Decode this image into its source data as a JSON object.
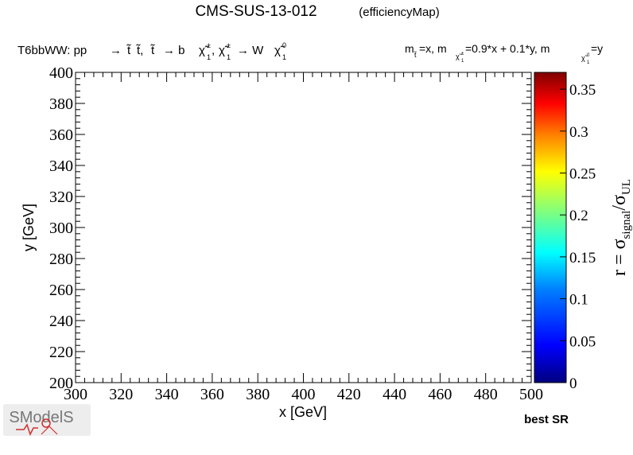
{
  "header": {
    "title": "CMS-SUS-13-012",
    "subtitle": "(efficiencyMap)"
  },
  "process": {
    "label": "T6bbWW: pp",
    "decay_parts": [
      "→",
      "t̃",
      "t̃,",
      "t̃",
      "→ b",
      "χ̃",
      "±",
      "1",
      ",",
      "χ̃",
      "±",
      "1",
      "→ W",
      "χ̃",
      "0",
      "1"
    ]
  },
  "mass_relation": {
    "m1": "m",
    "m1_sub": "t̃",
    "m1_rest": "=x, m",
    "m2_sub": "χ̃",
    "m2_sub_sup": "±",
    "m2_sub_sub": "1",
    "m2_rest": "=0.9*x + 0.1*y, m",
    "m3_sub": "χ̃",
    "m3_sub_sup": "0",
    "m3_sub_sub": "1",
    "m3_rest": "=y"
  },
  "footer": {
    "best_sr": "best SR",
    "logo_text": "SModelS"
  },
  "colors": {
    "frame": "#000000",
    "palette": [
      "#00007f",
      "#0000ff",
      "#007fff",
      "#00ffff",
      "#7fff7f",
      "#ffff00",
      "#ff7f00",
      "#ff0000",
      "#7f0000"
    ]
  },
  "chart_data": {
    "type": "heatmap",
    "xlabel": "x [GeV]",
    "ylabel": "y [GeV]",
    "xlim": [
      300,
      500
    ],
    "ylim": [
      200,
      400
    ],
    "x_ticks": [
      "300",
      "320",
      "340",
      "360",
      "380",
      "400",
      "420",
      "440",
      "460",
      "480",
      "500"
    ],
    "y_ticks": [
      "200",
      "220",
      "240",
      "260",
      "280",
      "300",
      "320",
      "340",
      "360",
      "380",
      "400"
    ],
    "colorbar": {
      "label_main": "r = σ",
      "label_sub1": "signal",
      "label_mid": "/σ",
      "label_sub2": "UL",
      "range": [
        0,
        0.37
      ],
      "ticks": [
        "0",
        "0.05",
        "0.1",
        "0.15",
        "0.2",
        "0.25",
        "0.3",
        "0.35"
      ],
      "tick_values": [
        0,
        0.05,
        0.1,
        0.15,
        0.2,
        0.25,
        0.3,
        0.35
      ]
    },
    "cells": []
  }
}
